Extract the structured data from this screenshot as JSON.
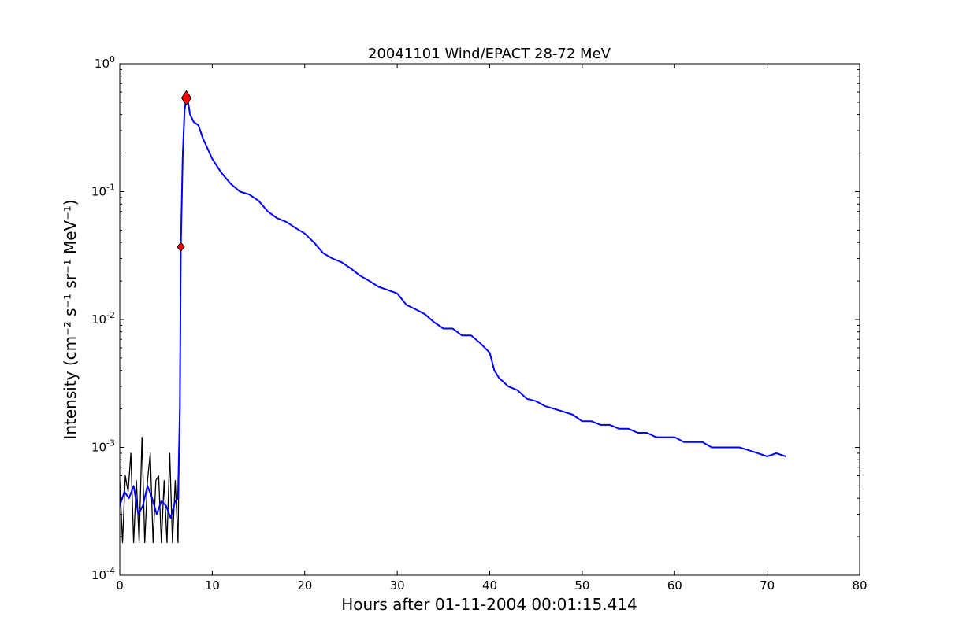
{
  "chart_data": {
    "type": "line",
    "title": "20041101 Wind/EPACT 28-72 MeV",
    "xlabel": "Hours after 01-11-2004 00:01:15.414",
    "ylabel": "Intensity (cm⁻² s⁻¹ sr⁻¹ MeV⁻¹)",
    "xlim": [
      0,
      80
    ],
    "ylim": [
      0.0001,
      1
    ],
    "yscale": "log",
    "grid": false,
    "x_ticks": [
      {
        "value": 0,
        "label": "0"
      },
      {
        "value": 10,
        "label": "10"
      },
      {
        "value": 20,
        "label": "20"
      },
      {
        "value": 30,
        "label": "30"
      },
      {
        "value": 40,
        "label": "40"
      },
      {
        "value": 50,
        "label": "50"
      },
      {
        "value": 60,
        "label": "60"
      },
      {
        "value": 70,
        "label": "70"
      },
      {
        "value": 80,
        "label": "80"
      }
    ],
    "y_ticks": [
      {
        "value": 0.0001,
        "base": "10",
        "exp": "-4"
      },
      {
        "value": 0.001,
        "base": "10",
        "exp": "-3"
      },
      {
        "value": 0.01,
        "base": "10",
        "exp": "-2"
      },
      {
        "value": 0.1,
        "base": "10",
        "exp": "-1"
      },
      {
        "value": 1,
        "base": "10",
        "exp": "0"
      }
    ],
    "series": [
      {
        "color": "#000000",
        "style": "raw",
        "x": [
          0.0,
          0.3,
          0.6,
          0.9,
          1.2,
          1.5,
          1.8,
          2.1,
          2.4,
          2.7,
          3.0,
          3.3,
          3.6,
          3.9,
          4.2,
          4.5,
          4.8,
          5.1,
          5.4,
          5.7,
          6.0,
          6.3,
          6.5,
          6.6,
          6.8,
          7.0,
          7.2,
          7.4,
          7.6,
          8.0,
          8.5,
          9.0,
          10.0,
          11.0,
          12.0,
          13.0,
          14.0,
          15.0,
          16.0,
          17.0,
          18.0,
          19.0,
          20.0,
          21.0,
          22.0,
          23.0,
          24.0,
          25.0,
          26.0,
          27.0,
          28.0,
          29.0,
          30.0,
          31.0,
          32.0,
          33.0,
          34.0,
          35.0,
          36.0,
          37.0,
          38.0,
          39.0,
          40.0,
          40.5,
          41.0,
          42.0,
          43.0,
          44.0,
          45.0,
          46.0,
          47.0,
          48.0,
          49.0,
          50.0,
          51.0,
          52.0,
          53.0,
          54.0,
          55.0,
          56.0,
          57.0,
          58.0,
          59.0,
          60.0,
          61.0,
          62.0,
          63.0,
          64.0,
          65.0,
          66.0,
          67.0,
          68.0,
          69.0,
          70.0,
          71.0,
          72.0
        ],
        "y": [
          0.00055,
          0.00018,
          0.0006,
          0.00045,
          0.0009,
          0.00018,
          0.00055,
          0.00018,
          0.0012,
          0.00018,
          0.00055,
          0.0009,
          0.00018,
          0.00055,
          0.0006,
          0.00018,
          0.00055,
          0.00018,
          0.0009,
          0.00018,
          0.00055,
          0.00018,
          0.0025,
          0.037,
          0.2,
          0.45,
          0.56,
          0.5,
          0.4,
          0.35,
          0.33,
          0.26,
          0.18,
          0.14,
          0.115,
          0.1,
          0.095,
          0.085,
          0.07,
          0.062,
          0.058,
          0.052,
          0.047,
          0.04,
          0.033,
          0.03,
          0.028,
          0.025,
          0.022,
          0.02,
          0.018,
          0.017,
          0.016,
          0.013,
          0.012,
          0.011,
          0.0095,
          0.0085,
          0.0085,
          0.0075,
          0.0075,
          0.0065,
          0.0055,
          0.004,
          0.0035,
          0.003,
          0.0028,
          0.0024,
          0.0023,
          0.0021,
          0.002,
          0.0019,
          0.0018,
          0.0016,
          0.0016,
          0.0015,
          0.0015,
          0.0014,
          0.0014,
          0.0013,
          0.0013,
          0.0012,
          0.0012,
          0.0012,
          0.0011,
          0.0011,
          0.0011,
          0.001,
          0.001,
          0.001,
          0.001,
          0.00095,
          0.0009,
          0.00085,
          0.0009,
          0.00085
        ]
      },
      {
        "color": "#0000ff",
        "style": "smoothed",
        "x": [
          0.0,
          0.5,
          1.0,
          1.5,
          2.0,
          2.5,
          3.0,
          3.5,
          4.0,
          4.5,
          5.0,
          5.5,
          6.0,
          6.3,
          6.5,
          6.6,
          6.8,
          7.0,
          7.2,
          7.4,
          7.6,
          8.0,
          8.5,
          9.0,
          10.0,
          11.0,
          12.0,
          13.0,
          14.0,
          15.0,
          16.0,
          17.0,
          18.0,
          19.0,
          20.0,
          21.0,
          22.0,
          23.0,
          24.0,
          25.0,
          26.0,
          27.0,
          28.0,
          29.0,
          30.0,
          31.0,
          32.0,
          33.0,
          34.0,
          35.0,
          36.0,
          37.0,
          38.0,
          39.0,
          40.0,
          40.5,
          41.0,
          42.0,
          43.0,
          44.0,
          45.0,
          46.0,
          47.0,
          48.0,
          49.0,
          50.0,
          51.0,
          52.0,
          53.0,
          54.0,
          55.0,
          56.0,
          57.0,
          58.0,
          59.0,
          60.0,
          61.0,
          62.0,
          63.0,
          64.0,
          65.0,
          66.0,
          67.0,
          68.0,
          69.0,
          70.0,
          71.0,
          72.0
        ],
        "y": [
          0.00035,
          0.00045,
          0.0004,
          0.0005,
          0.0003,
          0.00035,
          0.0005,
          0.0004,
          0.0003,
          0.00038,
          0.00035,
          0.00028,
          0.00038,
          0.0004,
          0.002,
          0.037,
          0.18,
          0.43,
          0.54,
          0.49,
          0.4,
          0.35,
          0.33,
          0.26,
          0.18,
          0.14,
          0.115,
          0.1,
          0.095,
          0.085,
          0.07,
          0.062,
          0.058,
          0.052,
          0.047,
          0.04,
          0.033,
          0.03,
          0.028,
          0.025,
          0.022,
          0.02,
          0.018,
          0.017,
          0.016,
          0.013,
          0.012,
          0.011,
          0.0095,
          0.0085,
          0.0085,
          0.0075,
          0.0075,
          0.0065,
          0.0055,
          0.004,
          0.0035,
          0.003,
          0.0028,
          0.0024,
          0.0023,
          0.0021,
          0.002,
          0.0019,
          0.0018,
          0.0016,
          0.0016,
          0.0015,
          0.0015,
          0.0014,
          0.0014,
          0.0013,
          0.0013,
          0.0012,
          0.0012,
          0.0012,
          0.0011,
          0.0011,
          0.0011,
          0.001,
          0.001,
          0.001,
          0.001,
          0.00095,
          0.0009,
          0.00085,
          0.0009,
          0.00085
        ]
      }
    ],
    "markers": [
      {
        "x": 6.6,
        "y": 0.037,
        "shape": "diamond",
        "size": "small",
        "color": "#ff0000"
      },
      {
        "x": 7.2,
        "y": 0.54,
        "shape": "diamond",
        "size": "large",
        "color": "#ff0000"
      }
    ]
  }
}
